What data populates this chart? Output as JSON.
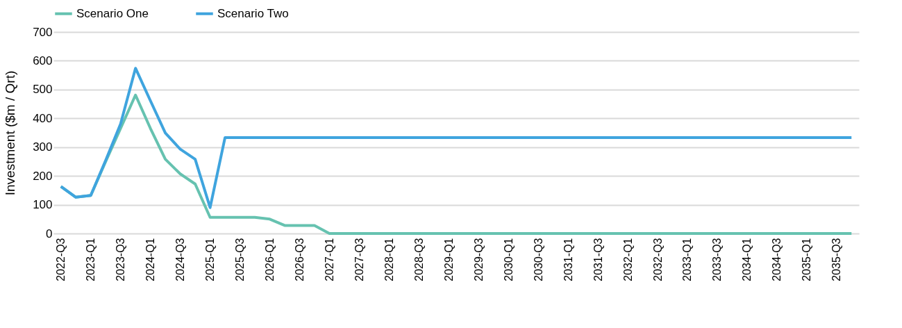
{
  "chart_data": {
    "type": "line",
    "ylabel": "Investment ($m / Qrt)",
    "categories": [
      "2022-Q3",
      null,
      "2023-Q1",
      null,
      "2023-Q3",
      null,
      "2024-Q1",
      null,
      "2024-Q3",
      null,
      "2025-Q1",
      null,
      "2025-Q3",
      null,
      "2026-Q1",
      null,
      "2026-Q3",
      null,
      "2027-Q1",
      null,
      "2027-Q3",
      null,
      "2028-Q1",
      null,
      "2028-Q3",
      null,
      "2029-Q1",
      null,
      "2029-Q3",
      null,
      "2030-Q1",
      null,
      "2030-Q3",
      null,
      "2031-Q1",
      null,
      "2031-Q3",
      null,
      "2032-Q1",
      null,
      "2032-Q3",
      null,
      "2033-Q1",
      null,
      "2033-Q3",
      null,
      "2034-Q1",
      null,
      "2034-Q3",
      null,
      "2035-Q1",
      null,
      "2035-Q3",
      null
    ],
    "series": [
      {
        "name": "Scenario One",
        "color": "#66c2b0",
        "values": [
          163,
          126,
          132,
          250,
          365,
          481,
          365,
          258,
          207,
          172,
          56,
          56,
          56,
          56,
          50,
          28,
          28,
          28,
          0,
          0,
          0,
          0,
          0,
          0,
          0,
          0,
          0,
          0,
          0,
          0,
          0,
          0,
          0,
          0,
          0,
          0,
          0,
          0,
          0,
          0,
          0,
          0,
          0,
          0,
          0,
          0,
          0,
          0,
          0,
          0,
          0,
          0,
          0,
          0
        ]
      },
      {
        "name": "Scenario Two",
        "color": "#3fa4de",
        "values": [
          163,
          126,
          132,
          254,
          381,
          574,
          461,
          349,
          293,
          258,
          90,
          333,
          333,
          333,
          333,
          333,
          333,
          333,
          333,
          333,
          333,
          333,
          333,
          333,
          333,
          333,
          333,
          333,
          333,
          333,
          333,
          333,
          333,
          333,
          333,
          333,
          333,
          333,
          333,
          333,
          333,
          333,
          333,
          333,
          333,
          333,
          333,
          333,
          333,
          333,
          333,
          333,
          333,
          333
        ]
      }
    ],
    "ylim": [
      0,
      700
    ],
    "yticks": [
      0,
      100,
      200,
      300,
      400,
      500,
      600,
      700
    ],
    "grid": "y",
    "legend": "top"
  }
}
